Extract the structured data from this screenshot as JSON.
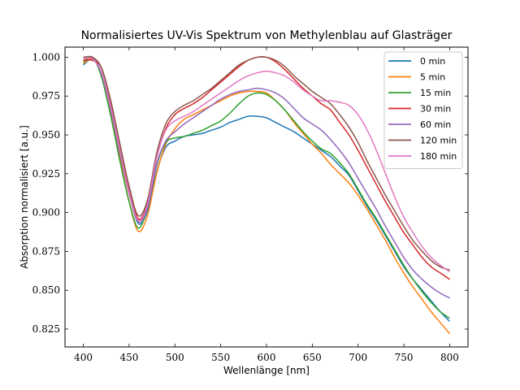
{
  "chart_data": {
    "type": "line",
    "title": "Normalisiertes UV-Vis Spektrum von Methylenblau auf Glasträger",
    "xlabel": "Wellenlänge [nm]",
    "ylabel": "Absorption normalisiert [a.u.]",
    "xlim": [
      380,
      820
    ],
    "ylim": [
      0.8135,
      1.0065
    ],
    "xticks": [
      400,
      450,
      500,
      550,
      600,
      650,
      700,
      750,
      800
    ],
    "yticks": [
      0.825,
      0.85,
      0.875,
      0.9,
      0.925,
      0.95,
      0.975,
      1.0
    ],
    "xtick_labels": [
      "400",
      "450",
      "500",
      "550",
      "600",
      "650",
      "700",
      "750",
      "800"
    ],
    "ytick_labels": [
      "0.825",
      "0.850",
      "0.875",
      "0.900",
      "0.925",
      "0.950",
      "0.975",
      "1.000"
    ],
    "grid": false,
    "legend": "top-right",
    "x": [
      400,
      410,
      420,
      430,
      440,
      450,
      460,
      470,
      480,
      490,
      500,
      510,
      520,
      530,
      540,
      550,
      560,
      570,
      580,
      590,
      600,
      610,
      620,
      630,
      640,
      650,
      660,
      670,
      680,
      690,
      700,
      710,
      720,
      730,
      740,
      750,
      760,
      770,
      780,
      790,
      800
    ],
    "series": [
      {
        "name": "0 min",
        "color": "#1f77b4",
        "values": [
          0.995,
          0.999,
          0.99,
          0.967,
          0.94,
          0.913,
          0.893,
          0.901,
          0.926,
          0.942,
          0.946,
          0.949,
          0.95,
          0.951,
          0.953,
          0.955,
          0.958,
          0.96,
          0.962,
          0.962,
          0.961,
          0.958,
          0.955,
          0.952,
          0.948,
          0.944,
          0.94,
          0.936,
          0.93,
          0.924,
          0.914,
          0.904,
          0.895,
          0.885,
          0.875,
          0.865,
          0.857,
          0.85,
          0.843,
          0.836,
          0.83
        ]
      },
      {
        "name": "5 min",
        "color": "#ff7f0e",
        "values": [
          0.996,
          0.999,
          0.989,
          0.964,
          0.935,
          0.907,
          0.888,
          0.898,
          0.925,
          0.944,
          0.954,
          0.96,
          0.963,
          0.966,
          0.969,
          0.972,
          0.975,
          0.977,
          0.978,
          0.978,
          0.977,
          0.972,
          0.966,
          0.958,
          0.951,
          0.944,
          0.938,
          0.931,
          0.925,
          0.919,
          0.911,
          0.902,
          0.892,
          0.882,
          0.871,
          0.861,
          0.852,
          0.844,
          0.836,
          0.829,
          0.822
        ]
      },
      {
        "name": "15 min",
        "color": "#2ca02c",
        "values": [
          0.997,
          1.0,
          0.987,
          0.962,
          0.933,
          0.907,
          0.89,
          0.903,
          0.93,
          0.945,
          0.948,
          0.949,
          0.951,
          0.953,
          0.956,
          0.959,
          0.964,
          0.97,
          0.975,
          0.977,
          0.976,
          0.972,
          0.966,
          0.959,
          0.952,
          0.946,
          0.941,
          0.938,
          0.932,
          0.925,
          0.915,
          0.905,
          0.896,
          0.886,
          0.876,
          0.866,
          0.857,
          0.849,
          0.842,
          0.836,
          0.832
        ]
      },
      {
        "name": "30 min",
        "color": "#d62728",
        "values": [
          0.998,
          0.998,
          0.993,
          0.971,
          0.944,
          0.916,
          0.896,
          0.906,
          0.935,
          0.954,
          0.963,
          0.967,
          0.97,
          0.974,
          0.979,
          0.984,
          0.989,
          0.994,
          0.998,
          1.0,
          1.0,
          0.997,
          0.992,
          0.986,
          0.98,
          0.975,
          0.97,
          0.966,
          0.958,
          0.95,
          0.94,
          0.929,
          0.918,
          0.907,
          0.897,
          0.887,
          0.879,
          0.871,
          0.865,
          0.861,
          0.857
        ]
      },
      {
        "name": "60 min",
        "color": "#9467bd",
        "values": [
          0.999,
          0.999,
          0.989,
          0.966,
          0.938,
          0.912,
          0.894,
          0.903,
          0.931,
          0.946,
          0.952,
          0.957,
          0.961,
          0.965,
          0.969,
          0.973,
          0.976,
          0.978,
          0.979,
          0.98,
          0.979,
          0.977,
          0.973,
          0.967,
          0.961,
          0.957,
          0.953,
          0.947,
          0.94,
          0.932,
          0.922,
          0.912,
          0.902,
          0.891,
          0.881,
          0.871,
          0.863,
          0.857,
          0.852,
          0.848,
          0.845
        ]
      },
      {
        "name": "120 min",
        "color": "#8c564b",
        "values": [
          1.0,
          1.0,
          0.993,
          0.972,
          0.944,
          0.917,
          0.898,
          0.908,
          0.938,
          0.957,
          0.965,
          0.969,
          0.972,
          0.976,
          0.98,
          0.985,
          0.99,
          0.995,
          0.998,
          1.0,
          1.0,
          0.998,
          0.994,
          0.988,
          0.983,
          0.978,
          0.974,
          0.97,
          0.963,
          0.955,
          0.945,
          0.933,
          0.922,
          0.911,
          0.901,
          0.891,
          0.882,
          0.875,
          0.869,
          0.865,
          0.863
        ]
      },
      {
        "name": "180 min",
        "color": "#e377c2",
        "values": [
          0.999,
          0.999,
          0.99,
          0.968,
          0.94,
          0.913,
          0.895,
          0.905,
          0.935,
          0.953,
          0.959,
          0.962,
          0.965,
          0.969,
          0.973,
          0.977,
          0.981,
          0.985,
          0.988,
          0.99,
          0.991,
          0.99,
          0.988,
          0.984,
          0.979,
          0.975,
          0.972,
          0.972,
          0.971,
          0.969,
          0.963,
          0.953,
          0.94,
          0.925,
          0.91,
          0.897,
          0.887,
          0.878,
          0.871,
          0.866,
          0.862
        ]
      }
    ]
  }
}
